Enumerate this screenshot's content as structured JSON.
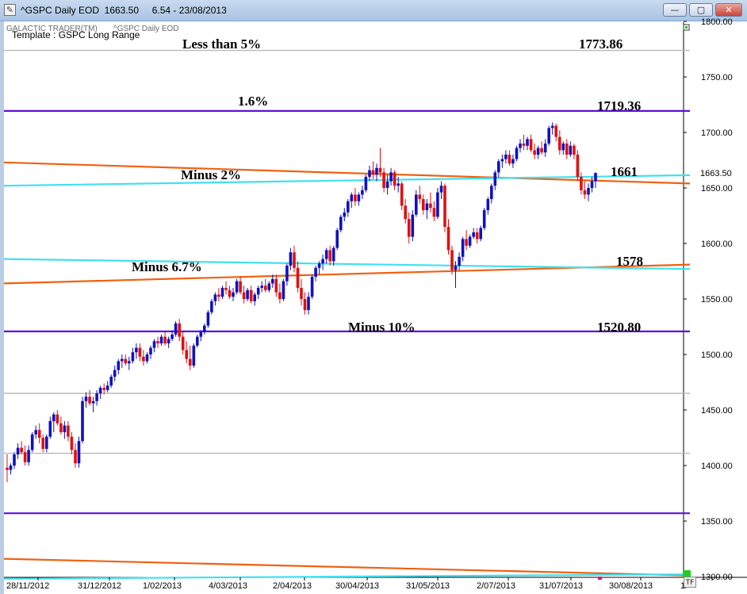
{
  "window": {
    "title": "^GSPC Daily EOD  1663.50     6.54 - 23/08/2013",
    "minimize_glyph": "—",
    "maximize_glyph": "▢",
    "close_glyph": "✕"
  },
  "header": {
    "brand": "GALACTIC TRADER(TM)",
    "symbol": "^GSPC Daily EOD",
    "template": "Template : GSPC Long Range"
  },
  "tf_badge": "TF",
  "colors": {
    "up_candle": "#1010c0",
    "down_candle": "#e01010",
    "purple_line": "#6010d8",
    "orange_line": "#f06010",
    "cyan_line": "#40e0f0",
    "gray_line": "#b8b8b8"
  },
  "chart_data": {
    "type": "candlestick",
    "ylim": [
      1300,
      1800
    ],
    "y_ticks": [
      "1800.00",
      "1750.00",
      "1700.00",
      "1650.00",
      "1600.00",
      "1550.00",
      "1500.00",
      "1450.00",
      "1400.00",
      "1350.00",
      "1300.00"
    ],
    "x_labels": [
      "28/11/2012",
      "31/12/2012",
      "1/02/2013",
      "4/03/2013",
      "2/04/2013",
      "30/04/2013",
      "31/05/2013",
      "2/07/2013",
      "31/07/2013",
      "30/08/2013",
      "1/"
    ],
    "last_price_label": "1663.50",
    "last_price": 1663.5,
    "levels": [
      {
        "label": "Less than 5%",
        "value_label": "1773.86",
        "value": 1773.86,
        "color": "gray"
      },
      {
        "label": "1.6%",
        "value_label": "1719.36",
        "value": 1719.36,
        "color": "purple"
      },
      {
        "label": "Minus 2%",
        "value_label": "1661",
        "value": 1661,
        "color": "cyan"
      },
      {
        "label": "Minus 6.7%",
        "value_label": "1578",
        "value": 1578,
        "color": "orange"
      },
      {
        "label": "Minus 10%",
        "value_label": "1520.80",
        "value": 1520.8,
        "color": "purple"
      }
    ],
    "candles": [
      [
        1398,
        1410,
        1385,
        1396
      ],
      [
        1396,
        1402,
        1392,
        1400
      ],
      [
        1400,
        1412,
        1397,
        1410
      ],
      [
        1410,
        1420,
        1406,
        1416
      ],
      [
        1416,
        1422,
        1410,
        1412
      ],
      [
        1412,
        1418,
        1400,
        1403
      ],
      [
        1403,
        1418,
        1400,
        1414
      ],
      [
        1414,
        1430,
        1412,
        1428
      ],
      [
        1428,
        1436,
        1424,
        1432
      ],
      [
        1432,
        1438,
        1420,
        1425
      ],
      [
        1425,
        1428,
        1412,
        1415
      ],
      [
        1415,
        1428,
        1412,
        1426
      ],
      [
        1426,
        1444,
        1424,
        1440
      ],
      [
        1440,
        1448,
        1430,
        1446
      ],
      [
        1446,
        1450,
        1436,
        1438
      ],
      [
        1438,
        1444,
        1428,
        1430
      ],
      [
        1430,
        1440,
        1424,
        1436
      ],
      [
        1436,
        1440,
        1422,
        1426
      ],
      [
        1426,
        1430,
        1410,
        1414
      ],
      [
        1414,
        1420,
        1398,
        1402
      ],
      [
        1402,
        1426,
        1398,
        1422
      ],
      [
        1422,
        1462,
        1420,
        1458
      ],
      [
        1458,
        1466,
        1452,
        1462
      ],
      [
        1462,
        1468,
        1454,
        1456
      ],
      [
        1456,
        1462,
        1448,
        1458
      ],
      [
        1458,
        1468,
        1454,
        1465
      ],
      [
        1465,
        1472,
        1460,
        1470
      ],
      [
        1470,
        1474,
        1464,
        1468
      ],
      [
        1468,
        1476,
        1466,
        1472
      ],
      [
        1472,
        1482,
        1470,
        1480
      ],
      [
        1480,
        1490,
        1476,
        1486
      ],
      [
        1486,
        1496,
        1482,
        1494
      ],
      [
        1494,
        1500,
        1488,
        1496
      ],
      [
        1496,
        1500,
        1490,
        1492
      ],
      [
        1492,
        1498,
        1486,
        1494
      ],
      [
        1494,
        1506,
        1492,
        1502
      ],
      [
        1502,
        1510,
        1496,
        1506
      ],
      [
        1506,
        1510,
        1494,
        1498
      ],
      [
        1498,
        1504,
        1490,
        1494
      ],
      [
        1494,
        1502,
        1492,
        1500
      ],
      [
        1500,
        1508,
        1496,
        1506
      ],
      [
        1506,
        1514,
        1502,
        1512
      ],
      [
        1512,
        1516,
        1506,
        1510
      ],
      [
        1510,
        1518,
        1508,
        1516
      ],
      [
        1516,
        1520,
        1508,
        1510
      ],
      [
        1510,
        1516,
        1506,
        1514
      ],
      [
        1514,
        1522,
        1512,
        1518
      ],
      [
        1518,
        1530,
        1516,
        1528
      ],
      [
        1528,
        1532,
        1512,
        1516
      ],
      [
        1516,
        1520,
        1500,
        1504
      ],
      [
        1504,
        1512,
        1492,
        1496
      ],
      [
        1496,
        1508,
        1486,
        1490
      ],
      [
        1490,
        1510,
        1488,
        1508
      ],
      [
        1508,
        1518,
        1506,
        1516
      ],
      [
        1516,
        1522,
        1512,
        1520
      ],
      [
        1520,
        1528,
        1518,
        1526
      ],
      [
        1526,
        1540,
        1524,
        1538
      ],
      [
        1538,
        1550,
        1536,
        1548
      ],
      [
        1548,
        1556,
        1544,
        1554
      ],
      [
        1554,
        1560,
        1548,
        1552
      ],
      [
        1552,
        1562,
        1550,
        1560
      ],
      [
        1560,
        1566,
        1554,
        1558
      ],
      [
        1558,
        1562,
        1550,
        1552
      ],
      [
        1552,
        1560,
        1548,
        1556
      ],
      [
        1556,
        1568,
        1554,
        1566
      ],
      [
        1566,
        1570,
        1554,
        1556
      ],
      [
        1556,
        1562,
        1546,
        1550
      ],
      [
        1550,
        1560,
        1548,
        1558
      ],
      [
        1558,
        1562,
        1546,
        1548
      ],
      [
        1548,
        1556,
        1544,
        1554
      ],
      [
        1554,
        1562,
        1550,
        1560
      ],
      [
        1560,
        1566,
        1556,
        1562
      ],
      [
        1562,
        1568,
        1556,
        1558
      ],
      [
        1558,
        1566,
        1556,
        1564
      ],
      [
        1564,
        1572,
        1560,
        1568
      ],
      [
        1568,
        1572,
        1552,
        1556
      ],
      [
        1556,
        1564,
        1546,
        1550
      ],
      [
        1550,
        1568,
        1548,
        1566
      ],
      [
        1566,
        1582,
        1562,
        1580
      ],
      [
        1580,
        1596,
        1576,
        1592
      ],
      [
        1592,
        1598,
        1574,
        1578
      ],
      [
        1578,
        1584,
        1556,
        1560
      ],
      [
        1560,
        1568,
        1544,
        1550
      ],
      [
        1550,
        1556,
        1536,
        1540
      ],
      [
        1540,
        1556,
        1536,
        1552
      ],
      [
        1552,
        1572,
        1550,
        1570
      ],
      [
        1570,
        1580,
        1566,
        1578
      ],
      [
        1578,
        1584,
        1572,
        1582
      ],
      [
        1582,
        1590,
        1576,
        1586
      ],
      [
        1586,
        1596,
        1582,
        1594
      ],
      [
        1594,
        1598,
        1580,
        1584
      ],
      [
        1584,
        1598,
        1580,
        1596
      ],
      [
        1596,
        1614,
        1594,
        1612
      ],
      [
        1612,
        1626,
        1610,
        1624
      ],
      [
        1624,
        1632,
        1620,
        1628
      ],
      [
        1628,
        1640,
        1624,
        1638
      ],
      [
        1638,
        1646,
        1632,
        1644
      ],
      [
        1644,
        1650,
        1634,
        1638
      ],
      [
        1638,
        1646,
        1634,
        1644
      ],
      [
        1644,
        1652,
        1640,
        1648
      ],
      [
        1648,
        1662,
        1646,
        1660
      ],
      [
        1660,
        1670,
        1656,
        1666
      ],
      [
        1666,
        1674,
        1658,
        1662
      ],
      [
        1662,
        1672,
        1656,
        1668
      ],
      [
        1668,
        1686,
        1660,
        1664
      ],
      [
        1664,
        1668,
        1646,
        1650
      ],
      [
        1650,
        1662,
        1644,
        1656
      ],
      [
        1656,
        1668,
        1652,
        1664
      ],
      [
        1664,
        1666,
        1648,
        1652
      ],
      [
        1652,
        1660,
        1646,
        1654
      ],
      [
        1654,
        1656,
        1630,
        1634
      ],
      [
        1634,
        1640,
        1618,
        1622
      ],
      [
        1622,
        1628,
        1600,
        1606
      ],
      [
        1606,
        1630,
        1602,
        1626
      ],
      [
        1626,
        1648,
        1624,
        1644
      ],
      [
        1644,
        1652,
        1636,
        1640
      ],
      [
        1640,
        1644,
        1626,
        1630
      ],
      [
        1630,
        1640,
        1622,
        1636
      ],
      [
        1636,
        1646,
        1628,
        1632
      ],
      [
        1632,
        1638,
        1620,
        1624
      ],
      [
        1624,
        1650,
        1622,
        1646
      ],
      [
        1646,
        1656,
        1640,
        1652
      ],
      [
        1652,
        1654,
        1610,
        1615
      ],
      [
        1615,
        1622,
        1590,
        1594
      ],
      [
        1594,
        1598,
        1572,
        1576
      ],
      [
        1576,
        1584,
        1560,
        1580
      ],
      [
        1580,
        1592,
        1576,
        1588
      ],
      [
        1588,
        1606,
        1584,
        1604
      ],
      [
        1604,
        1612,
        1594,
        1598
      ],
      [
        1598,
        1608,
        1596,
        1606
      ],
      [
        1606,
        1614,
        1604,
        1610
      ],
      [
        1610,
        1614,
        1600,
        1604
      ],
      [
        1604,
        1616,
        1602,
        1614
      ],
      [
        1614,
        1632,
        1612,
        1630
      ],
      [
        1630,
        1642,
        1626,
        1640
      ],
      [
        1640,
        1654,
        1636,
        1652
      ],
      [
        1652,
        1666,
        1648,
        1664
      ],
      [
        1664,
        1676,
        1660,
        1674
      ],
      [
        1674,
        1680,
        1668,
        1676
      ],
      [
        1676,
        1684,
        1672,
        1680
      ],
      [
        1680,
        1684,
        1670,
        1672
      ],
      [
        1672,
        1680,
        1668,
        1676
      ],
      [
        1676,
        1688,
        1674,
        1686
      ],
      [
        1686,
        1694,
        1682,
        1690
      ],
      [
        1690,
        1698,
        1684,
        1688
      ],
      [
        1688,
        1696,
        1684,
        1694
      ],
      [
        1694,
        1698,
        1682,
        1684
      ],
      [
        1684,
        1690,
        1676,
        1680
      ],
      [
        1680,
        1688,
        1676,
        1686
      ],
      [
        1686,
        1692,
        1680,
        1682
      ],
      [
        1682,
        1694,
        1678,
        1690
      ],
      [
        1690,
        1706,
        1688,
        1704
      ],
      [
        1704,
        1709,
        1698,
        1706
      ],
      [
        1706,
        1708,
        1692,
        1696
      ],
      [
        1696,
        1702,
        1680,
        1684
      ],
      [
        1684,
        1692,
        1680,
        1690
      ],
      [
        1690,
        1694,
        1676,
        1680
      ],
      [
        1680,
        1692,
        1678,
        1688
      ],
      [
        1688,
        1690,
        1676,
        1680
      ],
      [
        1680,
        1684,
        1656,
        1660
      ],
      [
        1660,
        1664,
        1644,
        1648
      ],
      [
        1648,
        1656,
        1640,
        1644
      ],
      [
        1644,
        1654,
        1638,
        1650
      ],
      [
        1650,
        1660,
        1646,
        1656
      ],
      [
        1656,
        1664,
        1650,
        1663.5
      ]
    ]
  }
}
